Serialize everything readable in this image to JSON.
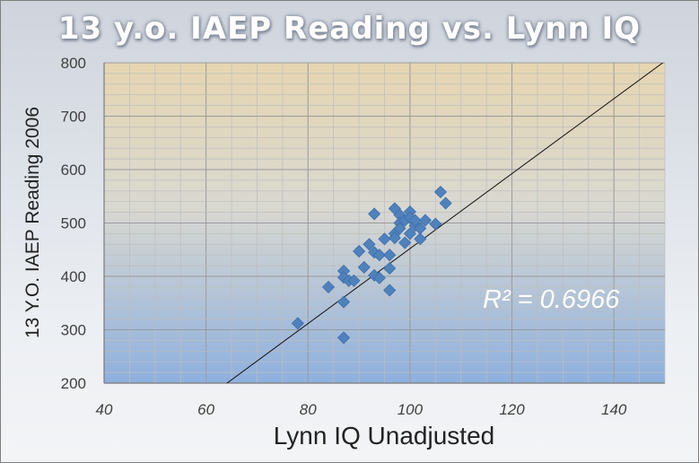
{
  "chart_data": {
    "type": "scatter",
    "title": "13 y.o. IAEP Reading vs. Lynn IQ",
    "xlabel": "Lynn IQ Unadjusted",
    "ylabel": "13 Y.O. IAEP Reading 2006",
    "xlim": [
      40,
      150
    ],
    "ylim": [
      200,
      800
    ],
    "xticks": [
      40,
      60,
      80,
      100,
      120,
      140
    ],
    "yticks": [
      200,
      300,
      400,
      500,
      600,
      700,
      800
    ],
    "grid": true,
    "annotation": "R² = 0.6966",
    "trendline": {
      "slope": 7.02,
      "intercept": -250
    },
    "points": [
      {
        "x": 78,
        "y": 312
      },
      {
        "x": 84,
        "y": 380
      },
      {
        "x": 87,
        "y": 410
      },
      {
        "x": 87,
        "y": 398
      },
      {
        "x": 88,
        "y": 392
      },
      {
        "x": 87,
        "y": 352
      },
      {
        "x": 87,
        "y": 285
      },
      {
        "x": 89,
        "y": 392
      },
      {
        "x": 90,
        "y": 447
      },
      {
        "x": 91,
        "y": 417
      },
      {
        "x": 92,
        "y": 460
      },
      {
        "x": 93,
        "y": 445
      },
      {
        "x": 93,
        "y": 517
      },
      {
        "x": 93,
        "y": 402
      },
      {
        "x": 94,
        "y": 397
      },
      {
        "x": 94,
        "y": 440
      },
      {
        "x": 95,
        "y": 470
      },
      {
        "x": 96,
        "y": 440
      },
      {
        "x": 96,
        "y": 415
      },
      {
        "x": 96,
        "y": 374
      },
      {
        "x": 97,
        "y": 527
      },
      {
        "x": 97,
        "y": 480
      },
      {
        "x": 97,
        "y": 472
      },
      {
        "x": 98,
        "y": 515
      },
      {
        "x": 98,
        "y": 500
      },
      {
        "x": 98,
        "y": 490
      },
      {
        "x": 99,
        "y": 463
      },
      {
        "x": 99,
        "y": 505
      },
      {
        "x": 100,
        "y": 521
      },
      {
        "x": 100,
        "y": 510
      },
      {
        "x": 100,
        "y": 480
      },
      {
        "x": 101,
        "y": 495
      },
      {
        "x": 101,
        "y": 505
      },
      {
        "x": 102,
        "y": 470
      },
      {
        "x": 102,
        "y": 490
      },
      {
        "x": 103,
        "y": 505
      },
      {
        "x": 105,
        "y": 498
      },
      {
        "x": 106,
        "y": 558
      },
      {
        "x": 107,
        "y": 537
      }
    ]
  }
}
